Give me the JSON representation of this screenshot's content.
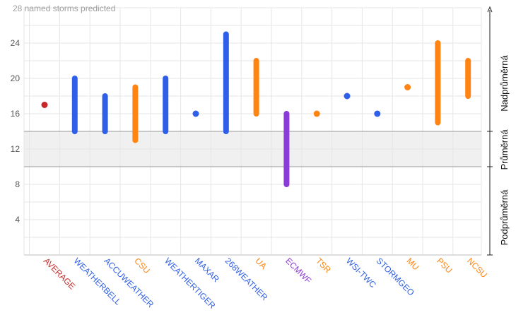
{
  "chart_data": {
    "type": "range",
    "annotation": "28 named storms predicted",
    "ylim": [
      0,
      28
    ],
    "yticks": [
      4,
      8,
      12,
      16,
      20,
      24
    ],
    "grid": true,
    "bands": [
      {
        "label": "Podprůměrná",
        "range": [
          0,
          10
        ]
      },
      {
        "label": "Průměrná",
        "range": [
          10,
          14
        ]
      },
      {
        "label": "Nadprůměrná",
        "range": [
          14,
          28
        ]
      }
    ],
    "categories": [
      {
        "name": "AVERAGE",
        "low": 17,
        "high": 17,
        "color": "#c62828"
      },
      {
        "name": "WEATHERBELL",
        "low": 14,
        "high": 20,
        "color": "#2f5fe8"
      },
      {
        "name": "ACCUWEATHER",
        "low": 14,
        "high": 18,
        "color": "#2f5fe8"
      },
      {
        "name": "CSU",
        "low": 13,
        "high": 19,
        "color": "#ff8412"
      },
      {
        "name": "WEATHERTIGER",
        "low": 14,
        "high": 20,
        "color": "#2f5fe8"
      },
      {
        "name": "MAXAR",
        "low": 16,
        "high": 16,
        "color": "#2f5fe8"
      },
      {
        "name": "268WEATHER",
        "low": 14,
        "high": 25,
        "color": "#2f5fe8"
      },
      {
        "name": "UA",
        "low": 16,
        "high": 22,
        "color": "#ff8412"
      },
      {
        "name": "ECMWF",
        "low": 8,
        "high": 16,
        "color": "#8b3bd6"
      },
      {
        "name": "TSR",
        "low": 16,
        "high": 16,
        "color": "#ff8412"
      },
      {
        "name": "WSI-TWC",
        "low": 18,
        "high": 18,
        "color": "#2f5fe8"
      },
      {
        "name": "STORMGEO",
        "low": 16,
        "high": 16,
        "color": "#2f5fe8"
      },
      {
        "name": "MU",
        "low": 19,
        "high": 19,
        "color": "#ff8412"
      },
      {
        "name": "PSU",
        "low": 15,
        "high": 24,
        "color": "#ff8412"
      },
      {
        "name": "NCSU",
        "low": 18,
        "high": 22,
        "color": "#ff8412"
      }
    ]
  }
}
